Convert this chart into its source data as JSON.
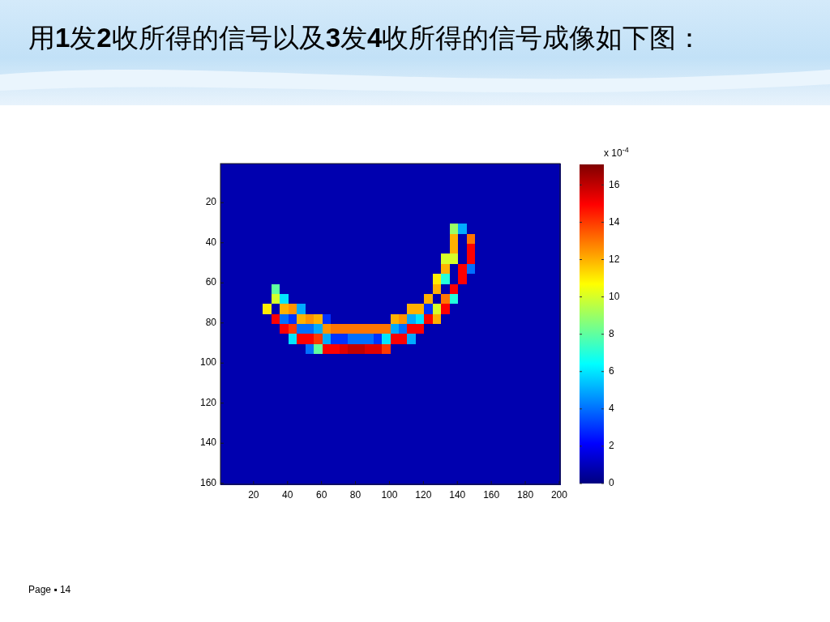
{
  "chart_data": {
    "type": "heatmap",
    "title": "用1发2收所得的信号以及3发4收所得的信号成像如下图：",
    "xlim": [
      0.5,
      200.5
    ],
    "ylim": [
      160.5,
      0.5
    ],
    "xticks": [
      20,
      40,
      60,
      80,
      100,
      120,
      140,
      160,
      180,
      200
    ],
    "yticks": [
      20,
      40,
      60,
      80,
      100,
      120,
      140,
      160
    ],
    "clim": [
      0,
      17.1
    ],
    "cticks": [
      0,
      2,
      4,
      6,
      8,
      10,
      12,
      14,
      16
    ],
    "clabel": "x 10$^{-4}$",
    "annotations": [
      "Page ▪ 14"
    ],
    "cells": [
      [
        0.8,
        0.8,
        0.8,
        0.8,
        0.8,
        0.8,
        0.8,
        0.8,
        0.8,
        0.8,
        0.8,
        0.8,
        0.8,
        0.8,
        0.8,
        0.8,
        0.8,
        0.8,
        0.8,
        0.8,
        0.8,
        0.8,
        0.8,
        0.8,
        0.8,
        0.8,
        0.8,
        0.8,
        0.8,
        0.8,
        0.8,
        0.8,
        0.8,
        0.8,
        0.8,
        0.8,
        0.8,
        0.8,
        0.8,
        0.8
      ],
      [
        0.8,
        0.8,
        0.8,
        0.8,
        0.8,
        0.8,
        0.8,
        0.8,
        0.8,
        0.8,
        0.8,
        0.8,
        0.8,
        0.8,
        0.8,
        0.8,
        0.8,
        0.8,
        0.8,
        0.8,
        0.8,
        0.8,
        0.8,
        0.8,
        0.8,
        0.8,
        0.8,
        0.8,
        0.8,
        0.8,
        0.8,
        0.8,
        0.8,
        0.8,
        0.8,
        0.8,
        0.8,
        0.8,
        0.8,
        0.8
      ],
      [
        0.8,
        0.8,
        0.8,
        0.8,
        0.8,
        0.8,
        0.8,
        0.8,
        0.8,
        0.8,
        0.8,
        0.8,
        0.8,
        0.8,
        0.8,
        0.8,
        0.8,
        0.8,
        0.8,
        0.8,
        0.8,
        0.8,
        0.8,
        0.8,
        0.8,
        0.8,
        0.8,
        0.8,
        0.8,
        0.8,
        0.8,
        0.8,
        0.8,
        0.8,
        0.8,
        0.8,
        0.8,
        0.8,
        0.8,
        0.8
      ],
      [
        0.8,
        0.8,
        0.8,
        0.8,
        0.8,
        0.8,
        0.8,
        0.8,
        0.8,
        0.8,
        0.8,
        0.8,
        0.8,
        0.8,
        0.8,
        0.8,
        0.8,
        0.8,
        0.8,
        0.8,
        0.8,
        0.8,
        0.8,
        0.8,
        0.8,
        0.8,
        0.8,
        0.8,
        0.8,
        0.8,
        0.8,
        0.8,
        0.8,
        0.8,
        0.8,
        0.8,
        0.8,
        0.8,
        0.8,
        0.8
      ],
      [
        0.8,
        0.8,
        0.8,
        0.8,
        0.8,
        0.8,
        0.8,
        0.8,
        0.8,
        0.8,
        0.8,
        0.8,
        0.8,
        0.8,
        0.8,
        0.8,
        0.8,
        0.8,
        0.8,
        0.8,
        0.8,
        0.8,
        0.8,
        0.8,
        0.8,
        0.8,
        0.8,
        0.8,
        0.8,
        0.8,
        0.8,
        0.8,
        0.8,
        0.8,
        0.8,
        0.8,
        0.8,
        0.8,
        0.8,
        0.8
      ],
      [
        0.8,
        0.8,
        0.8,
        0.8,
        0.8,
        0.8,
        0.8,
        0.8,
        0.8,
        0.8,
        0.8,
        0.8,
        0.8,
        0.8,
        0.8,
        0.8,
        0.8,
        0.8,
        0.8,
        0.8,
        0.8,
        0.8,
        0.8,
        0.8,
        0.8,
        0.8,
        0.8,
        0.8,
        0.8,
        0.8,
        0.8,
        0.8,
        0.8,
        0.8,
        0.8,
        0.8,
        0.8,
        0.8,
        0.8,
        0.8
      ],
      [
        0.8,
        0.8,
        0.8,
        0.8,
        0.8,
        0.8,
        0.8,
        0.8,
        0.8,
        0.8,
        0.8,
        0.8,
        0.8,
        0.8,
        0.8,
        0.8,
        0.8,
        0.8,
        0.8,
        0.8,
        0.8,
        0.8,
        0.8,
        0.8,
        0.8,
        0.8,
        0.8,
        9,
        5,
        0.8,
        0.8,
        0.8,
        0.8,
        0.8,
        0.8,
        0.8,
        0.8,
        0.8,
        0.8,
        0.8
      ],
      [
        0.8,
        0.8,
        0.8,
        0.8,
        0.8,
        0.8,
        0.8,
        0.8,
        0.8,
        0.8,
        0.8,
        0.8,
        0.8,
        0.8,
        0.8,
        0.8,
        0.8,
        0.8,
        0.8,
        0.8,
        0.8,
        0.8,
        0.8,
        0.8,
        0.8,
        0.8,
        0.8,
        12,
        0.8,
        13,
        0.8,
        0.8,
        0.8,
        0.8,
        0.8,
        0.8,
        0.8,
        0.8,
        0.8,
        0.8
      ],
      [
        0.8,
        0.8,
        0.8,
        0.8,
        0.8,
        0.8,
        0.8,
        0.8,
        0.8,
        0.8,
        0.8,
        0.8,
        0.8,
        0.8,
        0.8,
        0.8,
        0.8,
        0.8,
        0.8,
        0.8,
        0.8,
        0.8,
        0.8,
        0.8,
        0.8,
        0.8,
        0.8,
        12,
        0.8,
        15,
        0.8,
        0.8,
        0.8,
        0.8,
        0.8,
        0.8,
        0.8,
        0.8,
        0.8,
        0.8
      ],
      [
        0.8,
        0.8,
        0.8,
        0.8,
        0.8,
        0.8,
        0.8,
        0.8,
        0.8,
        0.8,
        0.8,
        0.8,
        0.8,
        0.8,
        0.8,
        0.8,
        0.8,
        0.8,
        0.8,
        0.8,
        0.8,
        0.8,
        0.8,
        0.8,
        0.8,
        0.8,
        10,
        10,
        0.8,
        15,
        0.8,
        0.8,
        0.8,
        0.8,
        0.8,
        0.8,
        0.8,
        0.8,
        0.8,
        0.8
      ],
      [
        0.8,
        0.8,
        0.8,
        0.8,
        0.8,
        0.8,
        0.8,
        0.8,
        0.8,
        0.8,
        0.8,
        0.8,
        0.8,
        0.8,
        0.8,
        0.8,
        0.8,
        0.8,
        0.8,
        0.8,
        0.8,
        0.8,
        0.8,
        0.8,
        0.8,
        0.8,
        12,
        0.8,
        15,
        4,
        0.8,
        0.8,
        0.8,
        0.8,
        0.8,
        0.8,
        0.8,
        0.8,
        0.8,
        0.8
      ],
      [
        0.8,
        0.8,
        0.8,
        0.8,
        0.8,
        0.8,
        0.8,
        0.8,
        0.8,
        0.8,
        0.8,
        0.8,
        0.8,
        0.8,
        0.8,
        0.8,
        0.8,
        0.8,
        0.8,
        0.8,
        0.8,
        0.8,
        0.8,
        0.8,
        0.8,
        11,
        7,
        0.8,
        15,
        0.8,
        0.8,
        0.8,
        0.8,
        0.8,
        0.8,
        0.8,
        0.8,
        0.8,
        0.8,
        0.8
      ],
      [
        0.8,
        0.8,
        0.8,
        0.8,
        0.8,
        0.8,
        8,
        0.8,
        0.8,
        0.8,
        0.8,
        0.8,
        0.8,
        0.8,
        0.8,
        0.8,
        0.8,
        0.8,
        0.8,
        0.8,
        0.8,
        0.8,
        0.8,
        0.8,
        0.8,
        12,
        0.8,
        15,
        0.8,
        0.8,
        0.8,
        0.8,
        0.8,
        0.8,
        0.8,
        0.8,
        0.8,
        0.8,
        0.8,
        0.8
      ],
      [
        0.8,
        0.8,
        0.8,
        0.8,
        0.8,
        0.8,
        10,
        6,
        0.8,
        0.8,
        0.8,
        0.8,
        0.8,
        0.8,
        0.8,
        0.8,
        0.8,
        0.8,
        0.8,
        0.8,
        0.8,
        0.8,
        0.8,
        0.8,
        12,
        0.8,
        13,
        7,
        0.8,
        0.8,
        0.8,
        0.8,
        0.8,
        0.8,
        0.8,
        0.8,
        0.8,
        0.8,
        0.8,
        0.8
      ],
      [
        0.8,
        0.8,
        0.8,
        0.8,
        0.8,
        11,
        0.8,
        12,
        12.5,
        5,
        0.8,
        0.8,
        0.8,
        0.8,
        0.8,
        0.8,
        0.8,
        0.8,
        0.8,
        0.8,
        0.8,
        0.8,
        12,
        12,
        3,
        10,
        15,
        0.8,
        0.8,
        0.8,
        0.8,
        0.8,
        0.8,
        0.8,
        0.8,
        0.8,
        0.8,
        0.8,
        0.8,
        0.8
      ],
      [
        0.8,
        0.8,
        0.8,
        0.8,
        0.8,
        0.8,
        15,
        4,
        3,
        12,
        12.5,
        12,
        3,
        0.8,
        0.8,
        0.8,
        0.8,
        0.8,
        0.8,
        0.8,
        12,
        12.5,
        5,
        6,
        15,
        12,
        0.8,
        0.8,
        0.8,
        0.8,
        0.8,
        0.8,
        0.8,
        0.8,
        0.8,
        0.8,
        0.8,
        0.8,
        0.8,
        0.8
      ],
      [
        0.8,
        0.8,
        0.8,
        0.8,
        0.8,
        0.8,
        0.8,
        15,
        14,
        4,
        4,
        5,
        12.5,
        13,
        13,
        13,
        13,
        13,
        13,
        13,
        5,
        4,
        15,
        15,
        0.8,
        0.8,
        0.8,
        0.8,
        0.8,
        0.8,
        0.8,
        0.8,
        0.8,
        0.8,
        0.8,
        0.8,
        0.8,
        0.8,
        0.8,
        0.8
      ],
      [
        0.8,
        0.8,
        0.8,
        0.8,
        0.8,
        0.8,
        0.8,
        0.8,
        6,
        15,
        15,
        14,
        5,
        3,
        3,
        4,
        4,
        4,
        3,
        6,
        15,
        15,
        5,
        0.8,
        0.8,
        0.8,
        0.8,
        0.8,
        0.8,
        0.8,
        0.8,
        0.8,
        0.8,
        0.8,
        0.8,
        0.8,
        0.8,
        0.8,
        0.8,
        0.8
      ],
      [
        0.8,
        0.8,
        0.8,
        0.8,
        0.8,
        0.8,
        0.8,
        0.8,
        0.8,
        0.8,
        4,
        8,
        15,
        15,
        15.5,
        16,
        16,
        15.5,
        15.5,
        14,
        0.8,
        0.8,
        0.8,
        0.8,
        0.8,
        0.8,
        0.8,
        0.8,
        0.8,
        0.8,
        0.8,
        0.8,
        0.8,
        0.8,
        0.8,
        0.8,
        0.8,
        0.8,
        0.8,
        0.8
      ],
      [
        0.8,
        0.8,
        0.8,
        0.8,
        0.8,
        0.8,
        0.8,
        0.8,
        0.8,
        0.8,
        0.8,
        0.8,
        0.8,
        0.8,
        0.8,
        0.8,
        0.8,
        0.8,
        0.8,
        0.8,
        0.8,
        0.8,
        0.8,
        0.8,
        0.8,
        0.8,
        0.8,
        0.8,
        0.8,
        0.8,
        0.8,
        0.8,
        0.8,
        0.8,
        0.8,
        0.8,
        0.8,
        0.8,
        0.8,
        0.8
      ],
      [
        0.8,
        0.8,
        0.8,
        0.8,
        0.8,
        0.8,
        0.8,
        0.8,
        0.8,
        0.8,
        0.8,
        0.8,
        0.8,
        0.8,
        0.8,
        0.8,
        0.8,
        0.8,
        0.8,
        0.8,
        0.8,
        0.8,
        0.8,
        0.8,
        0.8,
        0.8,
        0.8,
        0.8,
        0.8,
        0.8,
        0.8,
        0.8,
        0.8,
        0.8,
        0.8,
        0.8,
        0.8,
        0.8,
        0.8,
        0.8
      ],
      [
        0.8,
        0.8,
        0.8,
        0.8,
        0.8,
        0.8,
        0.8,
        0.8,
        0.8,
        0.8,
        0.8,
        0.8,
        0.8,
        0.8,
        0.8,
        0.8,
        0.8,
        0.8,
        0.8,
        0.8,
        0.8,
        0.8,
        0.8,
        0.8,
        0.8,
        0.8,
        0.8,
        0.8,
        0.8,
        0.8,
        0.8,
        0.8,
        0.8,
        0.8,
        0.8,
        0.8,
        0.8,
        0.8,
        0.8,
        0.8
      ],
      [
        0.8,
        0.8,
        0.8,
        0.8,
        0.8,
        0.8,
        0.8,
        0.8,
        0.8,
        0.8,
        0.8,
        0.8,
        0.8,
        0.8,
        0.8,
        0.8,
        0.8,
        0.8,
        0.8,
        0.8,
        0.8,
        0.8,
        0.8,
        0.8,
        0.8,
        0.8,
        0.8,
        0.8,
        0.8,
        0.8,
        0.8,
        0.8,
        0.8,
        0.8,
        0.8,
        0.8,
        0.8,
        0.8,
        0.8,
        0.8
      ],
      [
        0.8,
        0.8,
        0.8,
        0.8,
        0.8,
        0.8,
        0.8,
        0.8,
        0.8,
        0.8,
        0.8,
        0.8,
        0.8,
        0.8,
        0.8,
        0.8,
        0.8,
        0.8,
        0.8,
        0.8,
        0.8,
        0.8,
        0.8,
        0.8,
        0.8,
        0.8,
        0.8,
        0.8,
        0.8,
        0.8,
        0.8,
        0.8,
        0.8,
        0.8,
        0.8,
        0.8,
        0.8,
        0.8,
        0.8,
        0.8
      ],
      [
        0.8,
        0.8,
        0.8,
        0.8,
        0.8,
        0.8,
        0.8,
        0.8,
        0.8,
        0.8,
        0.8,
        0.8,
        0.8,
        0.8,
        0.8,
        0.8,
        0.8,
        0.8,
        0.8,
        0.8,
        0.8,
        0.8,
        0.8,
        0.8,
        0.8,
        0.8,
        0.8,
        0.8,
        0.8,
        0.8,
        0.8,
        0.8,
        0.8,
        0.8,
        0.8,
        0.8,
        0.8,
        0.8,
        0.8,
        0.8
      ],
      [
        0.8,
        0.8,
        0.8,
        0.8,
        0.8,
        0.8,
        0.8,
        0.8,
        0.8,
        0.8,
        0.8,
        0.8,
        0.8,
        0.8,
        0.8,
        0.8,
        0.8,
        0.8,
        0.8,
        0.8,
        0.8,
        0.8,
        0.8,
        0.8,
        0.8,
        0.8,
        0.8,
        0.8,
        0.8,
        0.8,
        0.8,
        0.8,
        0.8,
        0.8,
        0.8,
        0.8,
        0.8,
        0.8,
        0.8,
        0.8
      ],
      [
        0.8,
        0.8,
        0.8,
        0.8,
        0.8,
        0.8,
        0.8,
        0.8,
        0.8,
        0.8,
        0.8,
        0.8,
        0.8,
        0.8,
        0.8,
        0.8,
        0.8,
        0.8,
        0.8,
        0.8,
        0.8,
        0.8,
        0.8,
        0.8,
        0.8,
        0.8,
        0.8,
        0.8,
        0.8,
        0.8,
        0.8,
        0.8,
        0.8,
        0.8,
        0.8,
        0.8,
        0.8,
        0.8,
        0.8,
        0.8
      ],
      [
        0.8,
        0.8,
        0.8,
        0.8,
        0.8,
        0.8,
        0.8,
        0.8,
        0.8,
        0.8,
        0.8,
        0.8,
        0.8,
        0.8,
        0.8,
        0.8,
        0.8,
        0.8,
        0.8,
        0.8,
        0.8,
        0.8,
        0.8,
        0.8,
        0.8,
        0.8,
        0.8,
        0.8,
        0.8,
        0.8,
        0.8,
        0.8,
        0.8,
        0.8,
        0.8,
        0.8,
        0.8,
        0.8,
        0.8,
        0.8
      ],
      [
        0.8,
        0.8,
        0.8,
        0.8,
        0.8,
        0.8,
        0.8,
        0.8,
        0.8,
        0.8,
        0.8,
        0.8,
        0.8,
        0.8,
        0.8,
        0.8,
        0.8,
        0.8,
        0.8,
        0.8,
        0.8,
        0.8,
        0.8,
        0.8,
        0.8,
        0.8,
        0.8,
        0.8,
        0.8,
        0.8,
        0.8,
        0.8,
        0.8,
        0.8,
        0.8,
        0.8,
        0.8,
        0.8,
        0.8,
        0.8
      ],
      [
        0.8,
        0.8,
        0.8,
        0.8,
        0.8,
        0.8,
        0.8,
        0.8,
        0.8,
        0.8,
        0.8,
        0.8,
        0.8,
        0.8,
        0.8,
        0.8,
        0.8,
        0.8,
        0.8,
        0.8,
        0.8,
        0.8,
        0.8,
        0.8,
        0.8,
        0.8,
        0.8,
        0.8,
        0.8,
        0.8,
        0.8,
        0.8,
        0.8,
        0.8,
        0.8,
        0.8,
        0.8,
        0.8,
        0.8,
        0.8
      ],
      [
        0.8,
        0.8,
        0.8,
        0.8,
        0.8,
        0.8,
        0.8,
        0.8,
        0.8,
        0.8,
        0.8,
        0.8,
        0.8,
        0.8,
        0.8,
        0.8,
        0.8,
        0.8,
        0.8,
        0.8,
        0.8,
        0.8,
        0.8,
        0.8,
        0.8,
        0.8,
        0.8,
        0.8,
        0.8,
        0.8,
        0.8,
        0.8,
        0.8,
        0.8,
        0.8,
        0.8,
        0.8,
        0.8,
        0.8,
        0.8
      ],
      [
        0.8,
        0.8,
        0.8,
        0.8,
        0.8,
        0.8,
        0.8,
        0.8,
        0.8,
        0.8,
        0.8,
        0.8,
        0.8,
        0.8,
        0.8,
        0.8,
        0.8,
        0.8,
        0.8,
        0.8,
        0.8,
        0.8,
        0.8,
        0.8,
        0.8,
        0.8,
        0.8,
        0.8,
        0.8,
        0.8,
        0.8,
        0.8,
        0.8,
        0.8,
        0.8,
        0.8,
        0.8,
        0.8,
        0.8,
        0.8
      ]
    ]
  }
}
